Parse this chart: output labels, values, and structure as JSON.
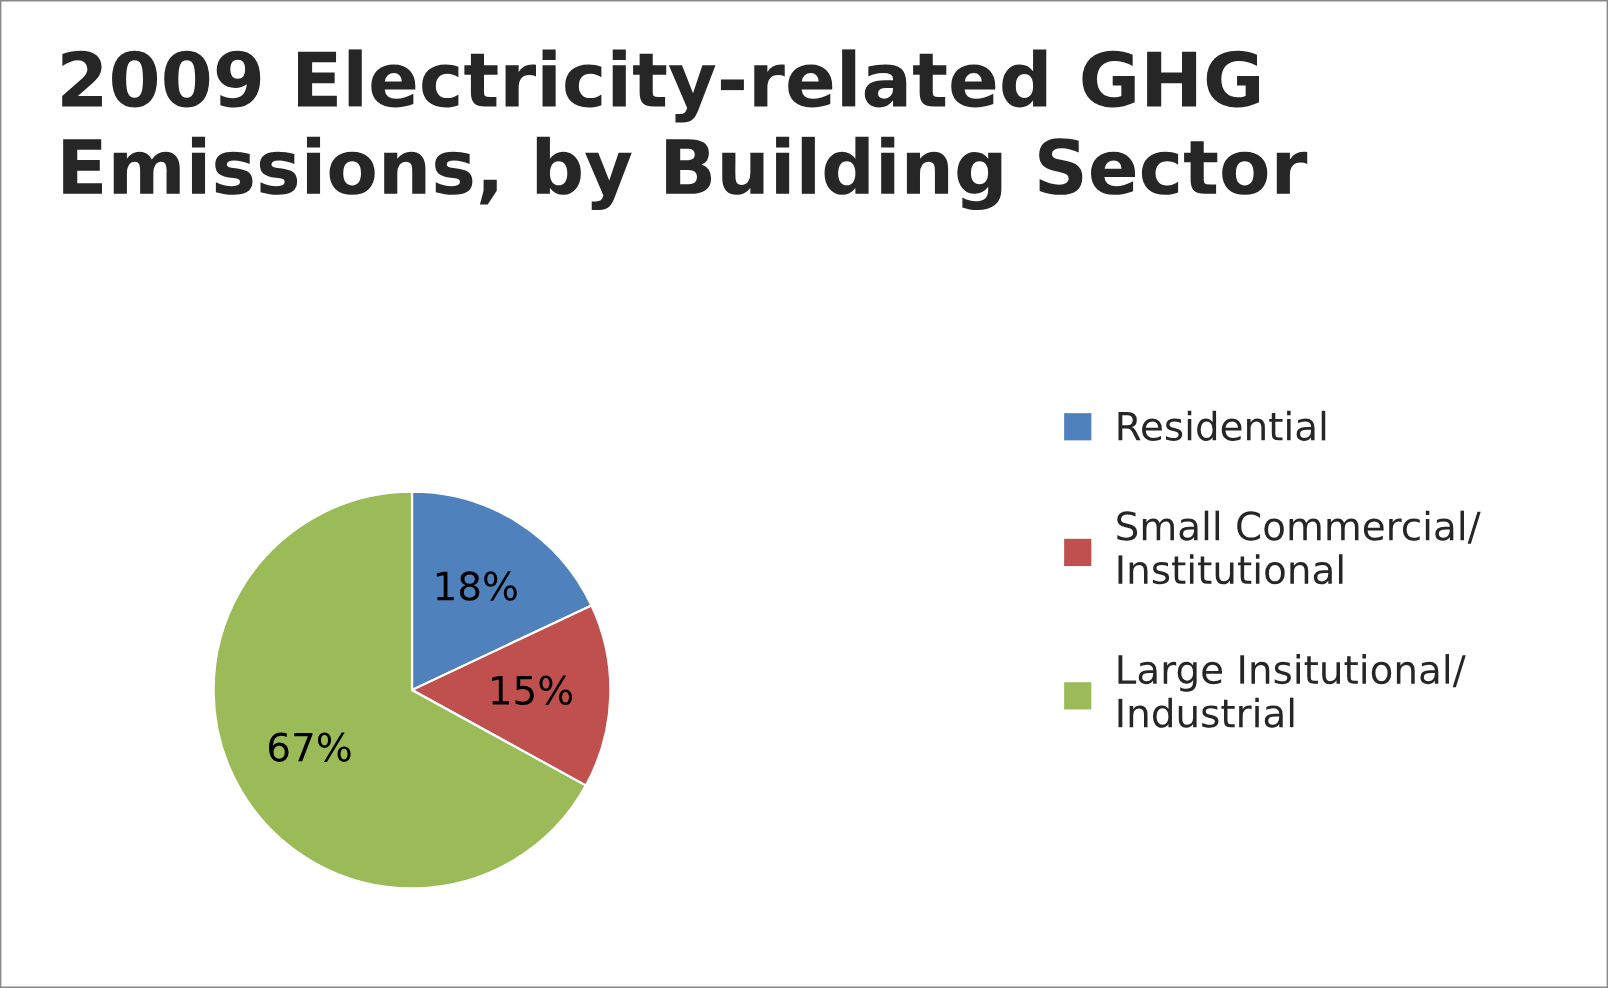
{
  "chart_data": {
    "type": "pie",
    "title": "2009 Electricity-related GHG\nEmissions, by Building Sector",
    "categories": [
      "Residential",
      "Small Commercial/\nInstitutional",
      "Large Insitutional/\nIndustrial"
    ],
    "values": [
      18,
      15,
      67
    ],
    "colors": [
      "#4f81bd",
      "#c0504d",
      "#9bbb59"
    ],
    "value_labels": [
      "18%",
      "15%",
      "67%"
    ],
    "legend": "right"
  }
}
